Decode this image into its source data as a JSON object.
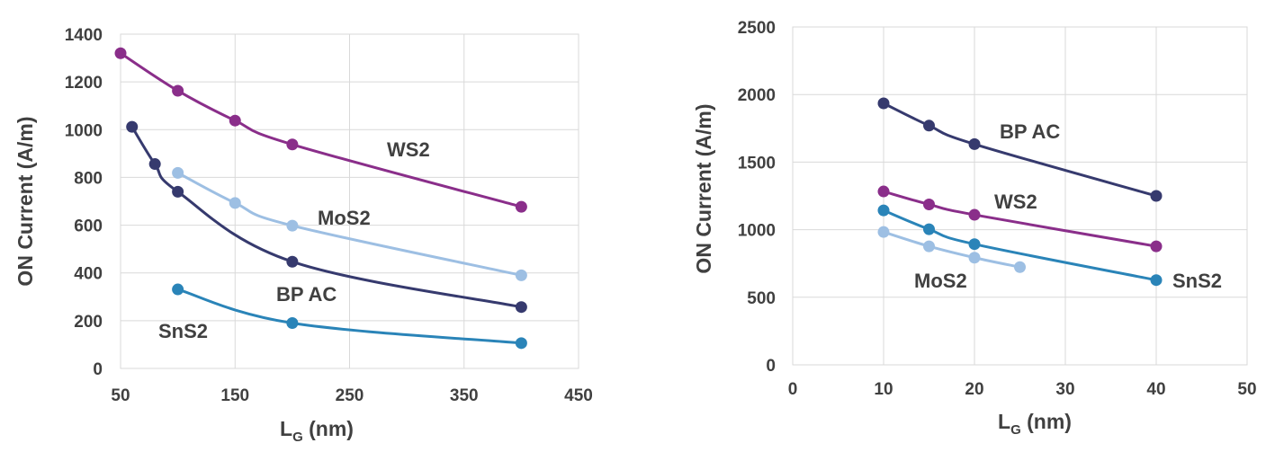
{
  "colors": {
    "WS2": "#8a2e8a",
    "BP AC": "#363a6e",
    "MoS2": "#9dbfe3",
    "SnS2": "#2a84b8"
  },
  "chart_data": [
    {
      "type": "line",
      "xlabel_main": "L",
      "xlabel_sub": "G",
      "xlabel_unit": " (nm)",
      "ylabel": "ON Current (A/m)",
      "xlim": [
        50,
        450
      ],
      "ylim": [
        0,
        1400
      ],
      "xticks": [
        50,
        150,
        250,
        350,
        450
      ],
      "yticks": [
        0,
        200,
        400,
        600,
        800,
        1000,
        1200,
        1400
      ],
      "grid": true,
      "series": [
        {
          "name": "WS2",
          "x": [
            50,
            100,
            150,
            200,
            400
          ],
          "y": [
            1320,
            1163,
            1038,
            938,
            677
          ]
        },
        {
          "name": "MoS2",
          "x": [
            100,
            150,
            200,
            400
          ],
          "y": [
            819,
            693,
            598,
            390
          ]
        },
        {
          "name": "BP AC",
          "x": [
            60,
            80,
            100,
            200,
            400
          ],
          "y": [
            1012,
            856,
            740,
            447,
            257
          ]
        },
        {
          "name": "SnS2",
          "x": [
            100,
            200,
            400
          ],
          "y": [
            331,
            190,
            106
          ]
        }
      ]
    },
    {
      "type": "line",
      "xlabel_main": "L",
      "xlabel_sub": "G",
      "xlabel_unit": " (nm)",
      "ylabel": "ON Current (A/m)",
      "xlim": [
        0,
        50
      ],
      "ylim": [
        0,
        2500
      ],
      "xticks": [
        0,
        10,
        20,
        30,
        40,
        50
      ],
      "yticks": [
        0,
        500,
        1000,
        1500,
        2000,
        2500
      ],
      "grid": true,
      "series": [
        {
          "name": "BP AC",
          "x": [
            10,
            15,
            20,
            40
          ],
          "y": [
            1935,
            1770,
            1633,
            1250
          ]
        },
        {
          "name": "WS2",
          "x": [
            10,
            15,
            20,
            40
          ],
          "y": [
            1283,
            1187,
            1110,
            877
          ]
        },
        {
          "name": "SnS2",
          "x": [
            10,
            15,
            20,
            40
          ],
          "y": [
            1143,
            1003,
            893,
            627
          ]
        },
        {
          "name": "MoS2",
          "x": [
            10,
            15,
            20,
            25
          ],
          "y": [
            983,
            877,
            793,
            723
          ]
        }
      ]
    }
  ]
}
